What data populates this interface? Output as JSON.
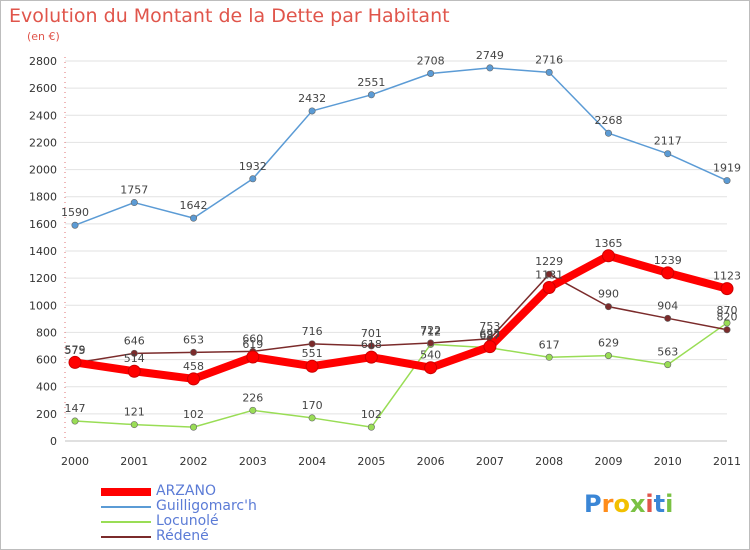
{
  "title": "Evolution du Montant de la Dette par Habitant",
  "unit_label": "(en €)",
  "logo": {
    "text": "Proxiti",
    "colors": [
      "#3a86d6",
      "#ff8c1a",
      "#f2c000",
      "#7ac143",
      "#e0554b",
      "#3a86d6",
      "#7ac143"
    ]
  },
  "chart_data": {
    "type": "line",
    "title": "Evolution du Montant de la Dette par Habitant",
    "ylabel": "(en €)",
    "xlabel": "",
    "x": [
      "2000",
      "2001",
      "2002",
      "2003",
      "2004",
      "2005",
      "2006",
      "2007",
      "2008",
      "2009",
      "2010",
      "2011"
    ],
    "ylim": [
      0,
      2800
    ],
    "yticks": [
      0,
      200,
      400,
      600,
      800,
      1000,
      1200,
      1400,
      1600,
      1800,
      2000,
      2200,
      2400,
      2600,
      2800
    ],
    "grid": true,
    "legend_position": "bottom-left",
    "series": [
      {
        "name": "ARZANO",
        "color": "#ff0000",
        "values": [
          579,
          514,
          458,
          619,
          551,
          618,
          540,
          695,
          1131,
          1365,
          1239,
          1123
        ],
        "labels": [
          "579",
          "514",
          "458",
          "619",
          "551",
          "618",
          "540",
          "695",
          "1131",
          "1365",
          "1239",
          "1123"
        ]
      },
      {
        "name": "Guilligomarc'h",
        "color": "#5b9bd5",
        "values": [
          1590,
          1757,
          1642,
          1932,
          2432,
          2551,
          2708,
          2749,
          2716,
          2268,
          2117,
          1919
        ],
        "labels": [
          "1590",
          "1757",
          "1642",
          "1932",
          "2432",
          "2551",
          "2708",
          "2749",
          "2716",
          "2268",
          "2117",
          "1919"
        ]
      },
      {
        "name": "Locunolé",
        "color": "#99dd55",
        "values": [
          147,
          121,
          102,
          226,
          170,
          102,
          712,
          687,
          617,
          629,
          563,
          870
        ],
        "labels": [
          "147",
          "121",
          "102",
          "226",
          "170",
          "102",
          "712",
          "687",
          "617",
          "629",
          "563",
          "870"
        ]
      },
      {
        "name": "Rédené",
        "color": "#7b2b2b",
        "values": [
          575,
          646,
          653,
          660,
          716,
          701,
          722,
          753,
          1229,
          990,
          904,
          820
        ],
        "labels": [
          "575",
          "646",
          "653",
          "660",
          "716",
          "701",
          "722",
          "753",
          "1229",
          "990",
          "904",
          "820"
        ]
      }
    ]
  }
}
